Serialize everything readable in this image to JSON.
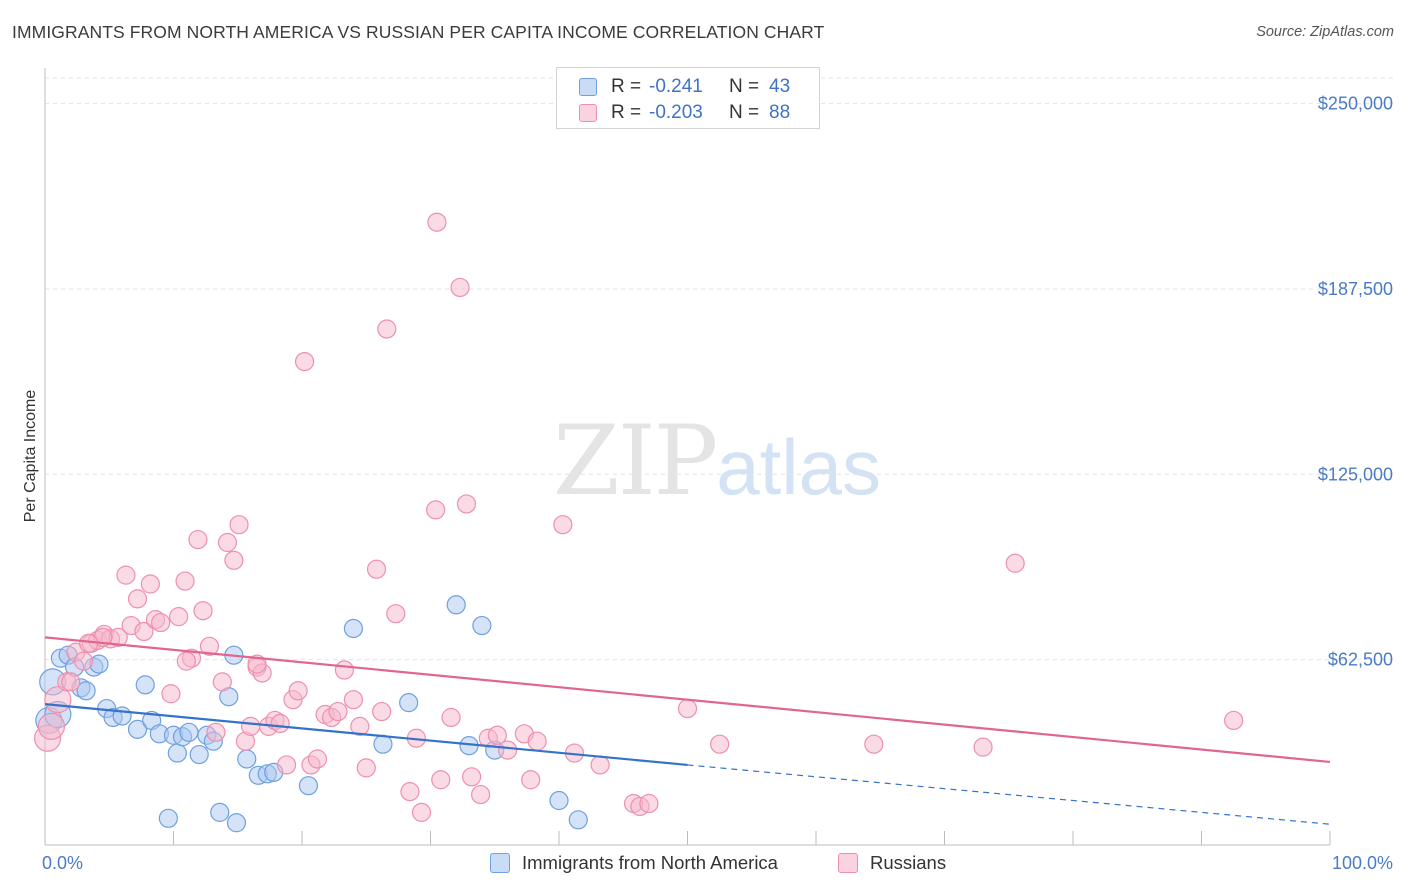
{
  "header": {
    "title": "IMMIGRANTS FROM NORTH AMERICA VS RUSSIAN PER CAPITA INCOME CORRELATION CHART",
    "source": "Source: ZipAtlas.com"
  },
  "watermark": {
    "zip": "ZIP",
    "atlas": "atlas"
  },
  "legend": {
    "rows": [
      {
        "r_label": "R =",
        "r_value": "-0.241",
        "n_label": "N =",
        "n_value": "43",
        "color": "#a9c8ef"
      },
      {
        "r_label": "R =",
        "r_value": "-0.203",
        "n_label": "N =",
        "n_value": "88",
        "color": "#f5b8cb"
      }
    ]
  },
  "bottom_legend": {
    "items": [
      {
        "label": "Immigrants from North America",
        "color": "#a9c8ef"
      },
      {
        "label": "Russians",
        "color": "#f5b8cb"
      }
    ]
  },
  "chart_data": {
    "type": "scatter",
    "title": "IMMIGRANTS FROM NORTH AMERICA VS RUSSIAN PER CAPITA INCOME CORRELATION CHART",
    "xlabel": "",
    "ylabel": "Per Capita Income",
    "xlim": [
      0,
      100
    ],
    "ylim": [
      0,
      262000
    ],
    "x_tick_labels": [
      "0.0%",
      "100.0%"
    ],
    "y_ticks": [
      62500,
      125000,
      187500,
      250000
    ],
    "y_tick_labels": [
      "$62,500",
      "$125,000",
      "$187,500",
      "$250,000"
    ],
    "grid": true,
    "legend_position": "top-center",
    "series": [
      {
        "name": "Immigrants from North America",
        "color": "#6fa0e0",
        "fill": "#a9c8ef",
        "trend": {
          "x0": 0,
          "y0": 47500,
          "x1": 50,
          "y1": 27000,
          "dashed_to_x": 100,
          "dashed_to_y": 7000,
          "color": "#3572c9"
        },
        "points": [
          [
            0.3,
            42000
          ],
          [
            0.6,
            55000
          ],
          [
            1.2,
            63000
          ],
          [
            1.8,
            64000
          ],
          [
            2.3,
            60000
          ],
          [
            2.8,
            53000
          ],
          [
            3.8,
            60000
          ],
          [
            4.2,
            61000
          ],
          [
            4.8,
            46000
          ],
          [
            5.3,
            43000
          ],
          [
            6.0,
            43500
          ],
          [
            7.2,
            39000
          ],
          [
            7.8,
            54000
          ],
          [
            8.3,
            42000
          ],
          [
            8.9,
            37500
          ],
          [
            9.6,
            9000
          ],
          [
            10.0,
            37000
          ],
          [
            10.3,
            31000
          ],
          [
            10.7,
            36500
          ],
          [
            11.2,
            38000
          ],
          [
            12.0,
            30500
          ],
          [
            12.6,
            37000
          ],
          [
            13.1,
            35000
          ],
          [
            13.6,
            11000
          ],
          [
            14.3,
            50000
          ],
          [
            14.7,
            64000
          ],
          [
            14.9,
            7500
          ],
          [
            15.7,
            29000
          ],
          [
            16.6,
            23500
          ],
          [
            17.3,
            24000
          ],
          [
            17.8,
            24500
          ],
          [
            20.5,
            20000
          ],
          [
            24.0,
            73000
          ],
          [
            26.3,
            34000
          ],
          [
            28.3,
            48000
          ],
          [
            32.0,
            81000
          ],
          [
            33.0,
            33500
          ],
          [
            34.0,
            74000
          ],
          [
            40.0,
            15000
          ],
          [
            41.5,
            8500
          ],
          [
            35.0,
            32000
          ],
          [
            1.0,
            44000
          ],
          [
            3.2,
            52000
          ]
        ]
      },
      {
        "name": "Russians",
        "color": "#ee8fad",
        "fill": "#f5b8cb",
        "trend": {
          "x0": 0,
          "y0": 70000,
          "x1": 100,
          "y1": 28000,
          "color": "#e0668e"
        },
        "points": [
          [
            0.2,
            36000
          ],
          [
            0.5,
            40000
          ],
          [
            1.0,
            49000
          ],
          [
            1.7,
            55000
          ],
          [
            2.4,
            65000
          ],
          [
            3.0,
            62000
          ],
          [
            3.6,
            68000
          ],
          [
            4.1,
            69000
          ],
          [
            4.6,
            71000
          ],
          [
            5.1,
            69500
          ],
          [
            5.7,
            70000
          ],
          [
            6.3,
            91000
          ],
          [
            6.7,
            74000
          ],
          [
            7.2,
            83000
          ],
          [
            7.7,
            72000
          ],
          [
            8.2,
            88000
          ],
          [
            8.6,
            76000
          ],
          [
            9.0,
            75000
          ],
          [
            9.8,
            51000
          ],
          [
            10.4,
            77000
          ],
          [
            10.9,
            89000
          ],
          [
            11.4,
            63000
          ],
          [
            11.9,
            103000
          ],
          [
            12.3,
            79000
          ],
          [
            12.8,
            67000
          ],
          [
            13.3,
            38000
          ],
          [
            13.8,
            55000
          ],
          [
            14.2,
            102000
          ],
          [
            14.7,
            96000
          ],
          [
            15.1,
            108000
          ],
          [
            15.6,
            35000
          ],
          [
            16.0,
            40000
          ],
          [
            16.5,
            60000
          ],
          [
            16.9,
            58000
          ],
          [
            17.4,
            40000
          ],
          [
            17.9,
            42000
          ],
          [
            18.3,
            41000
          ],
          [
            18.8,
            27000
          ],
          [
            19.3,
            49000
          ],
          [
            19.7,
            52000
          ],
          [
            20.2,
            163000
          ],
          [
            20.7,
            27000
          ],
          [
            21.2,
            29000
          ],
          [
            21.8,
            44000
          ],
          [
            22.3,
            43000
          ],
          [
            22.8,
            45000
          ],
          [
            23.3,
            59000
          ],
          [
            24.0,
            49000
          ],
          [
            24.5,
            40000
          ],
          [
            25.0,
            26000
          ],
          [
            25.8,
            93000
          ],
          [
            26.2,
            45000
          ],
          [
            26.6,
            174000
          ],
          [
            27.3,
            78000
          ],
          [
            28.4,
            18000
          ],
          [
            28.9,
            36000
          ],
          [
            29.3,
            11000
          ],
          [
            30.4,
            113000
          ],
          [
            30.8,
            22000
          ],
          [
            31.6,
            43000
          ],
          [
            32.3,
            188000
          ],
          [
            32.8,
            115000
          ],
          [
            33.2,
            23000
          ],
          [
            33.9,
            17000
          ],
          [
            34.5,
            36000
          ],
          [
            35.2,
            37000
          ],
          [
            36.0,
            32000
          ],
          [
            37.3,
            37500
          ],
          [
            37.8,
            22000
          ],
          [
            38.3,
            35000
          ],
          [
            40.3,
            108000
          ],
          [
            41.2,
            31000
          ],
          [
            43.2,
            27000
          ],
          [
            45.8,
            14000
          ],
          [
            46.3,
            13000
          ],
          [
            47.0,
            14000
          ],
          [
            50.0,
            46000
          ],
          [
            52.5,
            34000
          ],
          [
            64.5,
            34000
          ],
          [
            73.0,
            33000
          ],
          [
            75.5,
            95000
          ],
          [
            92.5,
            42000
          ],
          [
            2.0,
            55000
          ],
          [
            4.5,
            70000
          ],
          [
            11.0,
            62000
          ],
          [
            16.5,
            61000
          ],
          [
            30.5,
            210000
          ],
          [
            3.4,
            68000
          ]
        ]
      }
    ]
  }
}
